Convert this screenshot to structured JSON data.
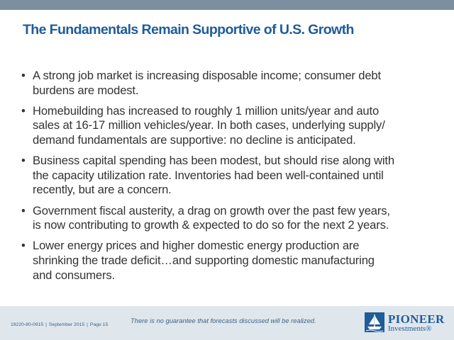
{
  "slide": {
    "title": "The Fundamentals Remain Supportive of U.S. Growth",
    "bullet_glyph": "•",
    "bullets": [
      {
        "lines": [
          "A strong job market is increasing disposable income; consumer debt",
          "burdens are modest."
        ]
      },
      {
        "lines": [
          "Homebuilding has increased to roughly 1 million units/year and auto",
          "sales at 16-17 million vehicles/year.  In both cases, underlying supply/",
          "demand fundamentals are supportive: no decline is anticipated."
        ]
      },
      {
        "lines": [
          "Business capital spending has been modest, but should rise along with",
          "the capacity utilization rate.  Inventories had been well-contained until",
          "recently, but are a concern."
        ]
      },
      {
        "lines": [
          "Government fiscal austerity, a drag on growth over the past few years,",
          "is now contributing to growth & expected to do so for the next 2 years."
        ]
      },
      {
        "lines": [
          "Lower energy prices and higher domestic energy production are",
          "shrinking the trade deficit…and supporting domestic manufacturing",
          "and consumers."
        ]
      }
    ]
  },
  "footer": {
    "disclaimer": "There is no guarantee that forecasts discussed will be realized.",
    "doc_id": "19220-80-0915",
    "date": "September 2015",
    "page": "Page 15",
    "separator": "|"
  },
  "logo": {
    "word_1": "PIONEER",
    "word_2": "Investments®",
    "icon": "pioneer-ship-logo-icon"
  },
  "colors": {
    "top_bar": "#7c8fa1",
    "title": "#1f5c99",
    "body_text": "#333333",
    "footer_bg": "#dfe6ec",
    "footer_text": "#3c6488"
  }
}
